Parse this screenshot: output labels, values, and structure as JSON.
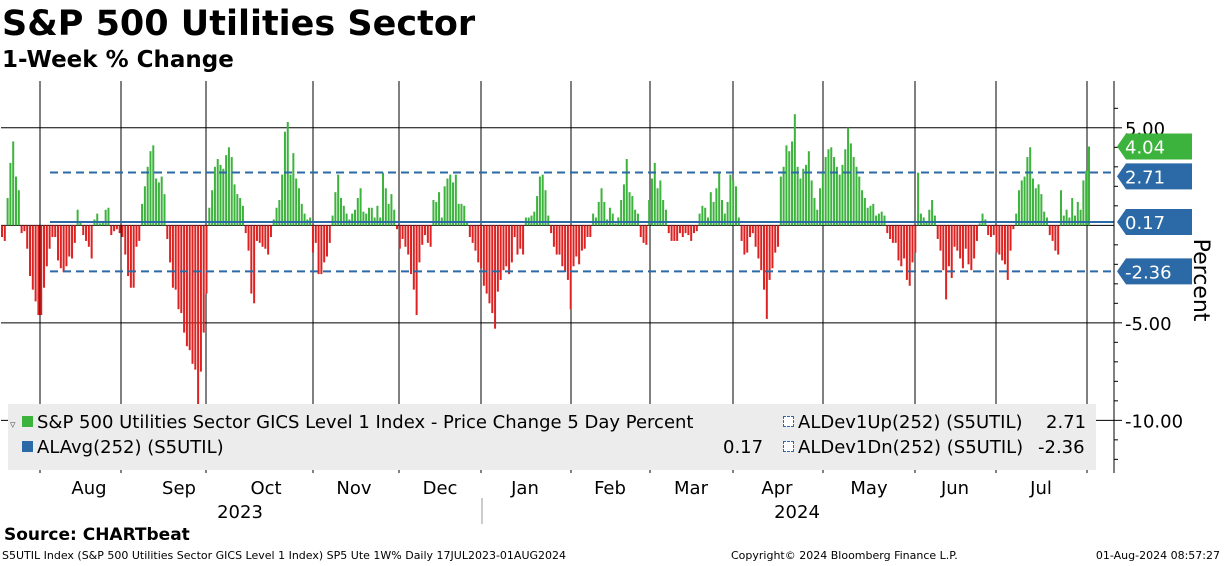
{
  "title": "S&P 500 Utilities Sector",
  "subtitle": "1-Week % Change",
  "source": "Source: CHARTbeat",
  "footer": {
    "left": "S5UTIL Index (S&P 500 Utilities Sector GICS Level 1 Index) SP5 Ute 1W%  Daily 17JUL2023-01AUG2024",
    "center": "Copyright© 2024 Bloomberg Finance L.P.",
    "right": "01-Aug-2024 08:57:27"
  },
  "legend": {
    "series1": "S&P 500 Utilities Sector GICS Level 1 Index - Price Change 5 Day Percent",
    "avg": "ALAvg(252) (S5UTIL)",
    "avg_value": "0.17",
    "dev_up": "ALDev1Up(252) (S5UTIL)",
    "dev_up_value": "2.71",
    "dev_dn": "ALDev1Dn(252) (S5UTIL)",
    "dev_dn_value": "-2.36"
  },
  "chart_data": {
    "type": "bar",
    "title": "S&P 500 Utilities Sector",
    "subtitle": "1-Week % Change",
    "ylabel": "Percent",
    "ylim": [
      -12.7,
      7.4
    ],
    "yticks": [
      5,
      -5,
      -10
    ],
    "ytick_labels": [
      "5.00",
      "-5.00",
      "-10.00"
    ],
    "x_month_labels": [
      "Aug",
      "Sep",
      "Oct",
      "Nov",
      "Dec",
      "Jan",
      "Feb",
      "Mar",
      "Apr",
      "May",
      "Jun",
      "Jul"
    ],
    "x_year_labels": [
      "2023",
      "2024"
    ],
    "reference_lines": [
      {
        "name": "ALDev1Up(252)",
        "value": 2.71,
        "label": "2.71",
        "style": "dashed",
        "color": "#2b6aa6"
      },
      {
        "name": "ALAvg(252)",
        "value": 0.17,
        "label": "0.17",
        "style": "solid",
        "color": "#2b6aa6"
      },
      {
        "name": "ALDev1Dn(252)",
        "value": -2.36,
        "label": "-2.36",
        "style": "dashed",
        "color": "#2b6aa6"
      }
    ],
    "last_value": {
      "value": 4.04,
      "label": "4.04",
      "color": "#3cb33c"
    },
    "positive_color": "#3cb33c",
    "negative_color": "#dd2222",
    "series": [
      {
        "name": "S&P 500 Utilities Sector GICS Level 1 Index - Price Change 5 Day Percent",
        "values": [
          -0.6,
          -0.8,
          1.4,
          3.2,
          4.3,
          2.5,
          1.8,
          -0.4,
          -0.3,
          -1.2,
          -2.6,
          -3.3,
          -3.9,
          -4.6,
          -4.6,
          -3.2,
          -2.1,
          -1.2,
          -0.6,
          -0.6,
          -1.8,
          -2.2,
          -2.4,
          -2.1,
          -1.6,
          -1.7,
          -0.9,
          0.8,
          0.2,
          -0.5,
          -0.8,
          -1.1,
          -1.7,
          0.3,
          0.6,
          0.1,
          0.2,
          0.8,
          0.9,
          -0.5,
          -0.3,
          -0.2,
          -0.4,
          -0.6,
          -1.5,
          -2.6,
          -3.2,
          -3.2,
          -1.1,
          -0.8,
          1.1,
          2.0,
          3.0,
          3.8,
          4.1,
          2.4,
          2.2,
          2.5,
          1.6,
          -0.7,
          -1.9,
          -3.2,
          -3.3,
          -4.3,
          -4.5,
          -5.5,
          -6.2,
          -6.4,
          -7.1,
          -7.4,
          -10.6,
          -7.5,
          -5.5,
          -3.5,
          0.9,
          1.8,
          3.0,
          3.4,
          3.1,
          2.9,
          3.6,
          4.0,
          3.5,
          2.1,
          1.6,
          1.4,
          1.0,
          -0.4,
          -1.3,
          -3.5,
          -4.0,
          -0.8,
          -0.9,
          -1.1,
          -1.2,
          -1.5,
          -0.6,
          0.3,
          0.9,
          1.3,
          2.6,
          4.8,
          5.3,
          2.6,
          3.7,
          2.4,
          1.9,
          1.1,
          0.6,
          0.3,
          0.4,
          -1.4,
          -0.9,
          -2.5,
          -2.5,
          -1.9,
          -1.6,
          -0.9,
          0.5,
          1.7,
          2.6,
          1.4,
          1.0,
          0.6,
          0.3,
          0.6,
          0.8,
          1.4,
          1.9,
          0.7,
          0.6,
          0.9,
          0.9,
          0.4,
          1.0,
          0.4,
          2.7,
          1.9,
          1.1,
          1.6,
          0.8,
          -0.2,
          -1.2,
          -0.7,
          -1.1,
          -1.5,
          -2.5,
          -3.3,
          -4.6,
          -1.9,
          -1.0,
          -0.5,
          -0.9,
          -1.1,
          1.3,
          1.2,
          1.7,
          0.4,
          2.0,
          2.4,
          2.6,
          2.2,
          2.6,
          1.1,
          1.1,
          1.0,
          0.2,
          -0.6,
          -0.9,
          -1.3,
          -1.9,
          -2.2,
          -3.1,
          -3.5,
          -4.0,
          -4.5,
          -5.3,
          -3.4,
          -2.8,
          -2.3,
          -2.1,
          -2.5,
          -1.9,
          -0.6,
          -1.5,
          -1.2,
          -1.5,
          0.4,
          0.4,
          0.5,
          0.7,
          1.5,
          2.5,
          2.6,
          1.8,
          0.5,
          -0.4,
          -1.1,
          -1.5,
          -1.5,
          -2.1,
          -2.4,
          -2.8,
          -4.3,
          -2.1,
          -1.6,
          -2.0,
          -1.3,
          -1.2,
          -0.6,
          -0.6,
          0.6,
          0.4,
          1.2,
          1.9,
          1.2,
          0.3,
          0.9,
          0.6,
          0.1,
          0.4,
          1.3,
          2.1,
          3.4,
          1.7,
          1.5,
          0.8,
          0.6,
          -0.6,
          -0.9,
          -1.0,
          1.3,
          2.4,
          3.2,
          1.9,
          2.3,
          1.3,
          0.8,
          -0.4,
          -0.8,
          -0.8,
          -0.8,
          -0.4,
          -0.6,
          -0.4,
          -0.5,
          -0.8,
          -0.4,
          -0.3,
          0.6,
          1.0,
          0.9,
          0.4,
          1.7,
          1.2,
          1.9,
          2.7,
          1.3,
          0.6,
          1.2,
          2.6,
          2.3,
          2.0,
          0.4,
          -0.8,
          -1.5,
          -1.4,
          -0.6,
          -0.4,
          -1.1,
          -1.7,
          -2.3,
          -3.3,
          -4.8,
          -2.8,
          -2.2,
          -1.4,
          -1.1,
          2.5,
          3.0,
          4.1,
          3.8,
          4.3,
          5.7,
          3.0,
          2.4,
          2.9,
          3.1,
          3.8,
          2.3,
          1.4,
          0.8,
          1.9,
          2.7,
          3.5,
          3.9,
          4.0,
          3.5,
          3.0,
          2.6,
          3.1,
          3.9,
          5.0,
          4.2,
          3.5,
          3.0,
          2.5,
          1.8,
          1.4,
          0.9,
          1.0,
          1.1,
          0.5,
          0.6,
          0.7,
          0.5,
          -0.4,
          -0.7,
          -0.9,
          -0.9,
          -1.8,
          -2.1,
          -1.7,
          -2.8,
          -3.1,
          -1.9,
          -1.4,
          2.7,
          0.6,
          0.4,
          0.2,
          0.8,
          1.3,
          0.5,
          -0.7,
          -1.3,
          -2.3,
          -3.8,
          -2.1,
          -2.7,
          -1.1,
          -1.3,
          -1.7,
          -2.2,
          -1.2,
          -2.0,
          -2.3,
          -1.7,
          -0.8,
          0.1,
          0.6,
          0.3,
          -0.5,
          -0.6,
          -0.5,
          -1.4,
          -1.5,
          -1.8,
          -2.0,
          -2.8,
          -1.3,
          -0.2,
          0.6,
          1.8,
          2.3,
          2.5,
          3.5,
          4.0,
          2.4,
          1.9,
          2.1,
          1.6,
          0.7,
          0.4,
          -0.5,
          -0.8,
          -1.3,
          -1.5,
          1.8,
          0.5,
          0.8,
          0.4,
          1.4,
          0.5,
          1.2,
          0.8,
          2.3,
          2.8,
          4.04
        ]
      }
    ]
  }
}
